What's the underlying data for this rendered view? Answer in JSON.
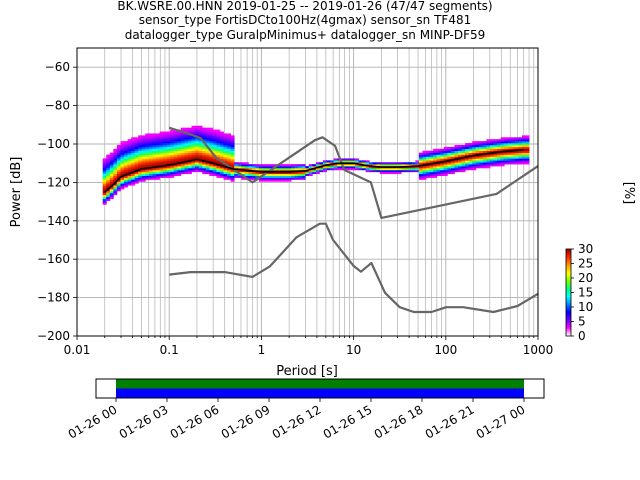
{
  "chart_data": [
    {
      "type": "heatmap",
      "title_lines": [
        "BK.WSRE.00.HNN   2019-01-25 -- 2019-01-26  (47/47 segments)",
        "sensor_type FortisDCto100Hz(4gmax) sensor_sn TF481",
        "datalogger_type GuralpMinimus+ datalogger_sn MINP-DF59"
      ],
      "xlabel": "Period [s]",
      "ylabel": "Power [dB]",
      "x_scale": "log",
      "xlim": [
        0.01,
        1000
      ],
      "ylim": [
        -200,
        -50
      ],
      "x_ticks": [
        {
          "value": 0.01,
          "label": "0.01"
        },
        {
          "value": 0.1,
          "label": "0.1"
        },
        {
          "value": 1,
          "label": "1"
        },
        {
          "value": 10,
          "label": "10"
        },
        {
          "value": 100,
          "label": "100"
        },
        {
          "value": 1000,
          "label": "1000"
        }
      ],
      "y_ticks": [
        {
          "value": -60,
          "label": "−60"
        },
        {
          "value": -80,
          "label": "−80"
        },
        {
          "value": -100,
          "label": "−100"
        },
        {
          "value": -120,
          "label": "−120"
        },
        {
          "value": -140,
          "label": "−140"
        },
        {
          "value": -160,
          "label": "−160"
        },
        {
          "value": -180,
          "label": "−180"
        },
        {
          "value": -200,
          "label": "−200"
        }
      ],
      "grid": true,
      "series": [
        {
          "kind": "noise-model",
          "color": "#666666",
          "x": [
            0.1,
            0.17,
            0.22,
            0.32,
            0.8,
            3.8,
            4.6,
            6.3,
            7.9,
            15.4,
            20,
            354.8,
            1000
          ],
          "y": [
            -91.5,
            -95,
            -97,
            -107,
            -120,
            -98,
            -96.5,
            -101,
            -113.5,
            -120,
            -138.5,
            -126,
            -111.5
          ]
        },
        {
          "kind": "noise-model",
          "color": "#666666",
          "x": [
            0.1,
            0.17,
            0.4,
            0.8,
            1.24,
            2.4,
            4.3,
            5,
            6,
            10,
            12,
            15.6,
            21.9,
            31.6,
            45,
            70,
            101,
            154,
            328,
            600,
            1000
          ],
          "y": [
            -168,
            -166.7,
            -166.7,
            -169.2,
            -163.7,
            -148.6,
            -141.5,
            -141.5,
            -150,
            -163.5,
            -166.5,
            -162,
            -177.5,
            -185,
            -187.5,
            -187.5,
            -185,
            -185,
            -187.5,
            -184.4,
            -178
          ]
        },
        {
          "kind": "mode",
          "color": "#000000",
          "x": [
            0.02,
            0.025,
            0.03,
            0.05,
            0.1,
            0.2,
            0.3,
            0.5,
            0.8,
            1,
            2,
            3,
            5,
            7,
            10,
            15,
            20,
            30,
            50,
            100,
            200,
            400,
            700
          ],
          "y": [
            -125,
            -121,
            -117,
            -113,
            -111,
            -108,
            -110,
            -113,
            -114,
            -114.5,
            -114.5,
            -114,
            -111,
            -110,
            -110,
            -111.5,
            -112,
            -112,
            -111.5,
            -109,
            -106,
            -104,
            -103
          ]
        }
      ],
      "colorbar": {
        "label": "[%]",
        "range": [
          0,
          30
        ],
        "ticks": [
          {
            "value": 0,
            "label": "0"
          },
          {
            "value": 5,
            "label": "5"
          },
          {
            "value": 10,
            "label": "10"
          },
          {
            "value": 15,
            "label": "15"
          },
          {
            "value": 20,
            "label": "20"
          },
          {
            "value": 25,
            "label": "25"
          },
          {
            "value": 30,
            "label": "30"
          }
        ],
        "colors": [
          "#ffffff",
          "#ff00ff",
          "#6600ff",
          "#0000ff",
          "#0080ff",
          "#00ffff",
          "#00ff80",
          "#80ff00",
          "#ffff00",
          "#ffa000",
          "#ff3000",
          "#aa0000"
        ]
      }
    },
    {
      "type": "timeline",
      "time_range": [
        "2019-01-26T00:00",
        "2019-01-27T00:00"
      ],
      "tick_labels": [
        "01-26 00",
        "01-26 03",
        "01-26 06",
        "01-26 09",
        "01-26 12",
        "01-26 15",
        "01-26 18",
        "01-26 21",
        "01-27 00"
      ],
      "bars": [
        {
          "color": "#008000",
          "start_hour": 0,
          "end_hour": 24
        },
        {
          "color": "#0000ff",
          "start_hour": 0,
          "end_hour": 24
        }
      ]
    }
  ]
}
